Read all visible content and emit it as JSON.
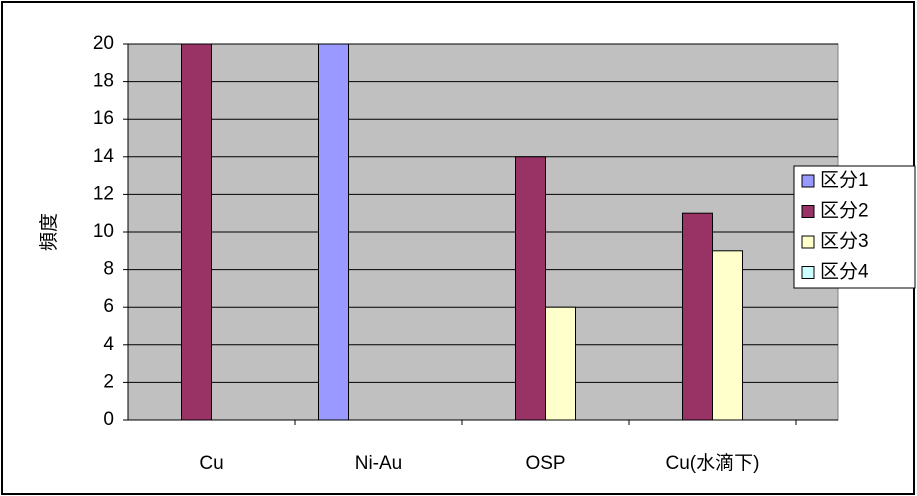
{
  "chart_data": {
    "type": "bar",
    "y_label": "頻度",
    "categories": [
      "Cu",
      "Ni-Au",
      "OSP",
      "Cu(水滴下)"
    ],
    "series": [
      {
        "name": "区分1",
        "color": "#9999ff",
        "values": [
          0,
          20,
          0,
          0
        ]
      },
      {
        "name": "区分2",
        "color": "#993366",
        "values": [
          20,
          0,
          14,
          11
        ]
      },
      {
        "name": "区分3",
        "color": "#ffffcc",
        "values": [
          0,
          0,
          6,
          9
        ]
      },
      {
        "name": "区分4",
        "color": "#ccffff",
        "values": [
          0,
          0,
          0,
          0
        ]
      }
    ],
    "ylim": [
      0,
      20
    ],
    "yticks": [
      0,
      2,
      4,
      6,
      8,
      10,
      12,
      14,
      16,
      18,
      20
    ],
    "grid": true,
    "legend": "right"
  }
}
